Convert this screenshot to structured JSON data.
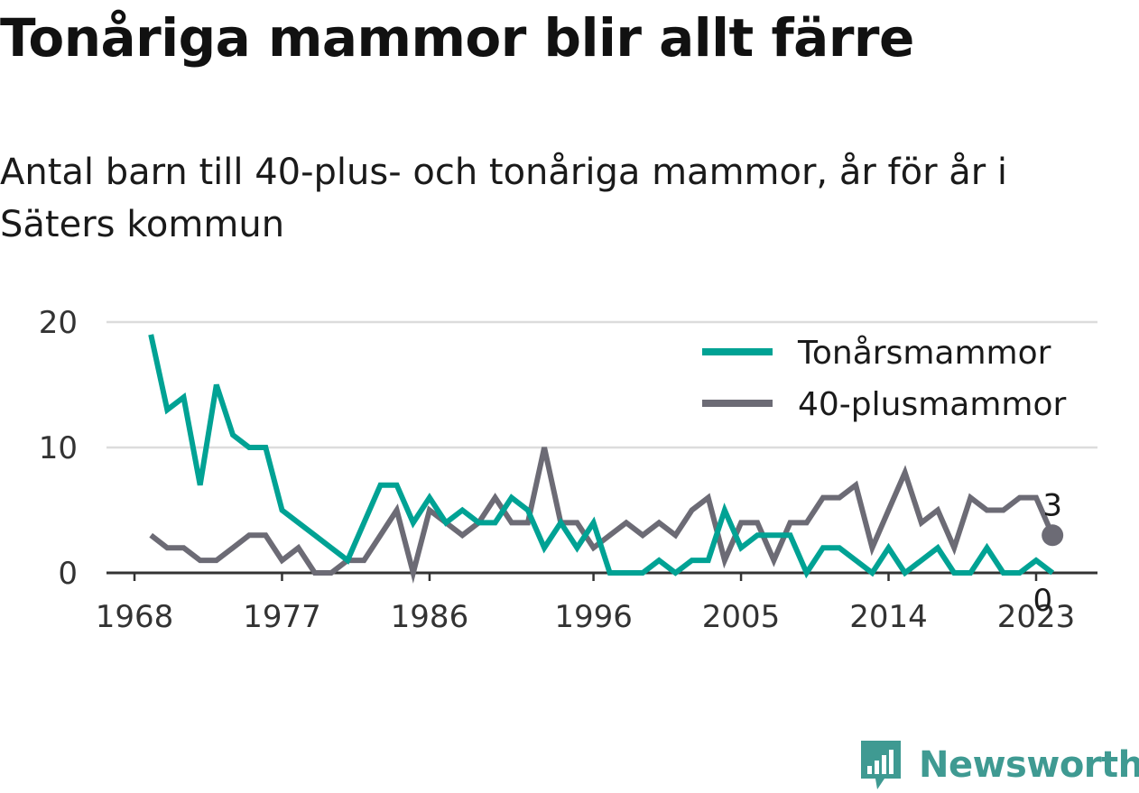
{
  "header": {
    "title": "Tonåriga mammor blir allt färre",
    "subtitle": "Antal barn till 40-plus- och tonåriga mammor, år för år i Säters kommun"
  },
  "chart_data": {
    "type": "line",
    "x": [
      1969,
      1970,
      1971,
      1972,
      1973,
      1974,
      1975,
      1976,
      1977,
      1978,
      1979,
      1980,
      1981,
      1982,
      1983,
      1984,
      1985,
      1986,
      1987,
      1988,
      1989,
      1990,
      1991,
      1992,
      1993,
      1994,
      1995,
      1996,
      1997,
      1998,
      1999,
      2000,
      2001,
      2002,
      2003,
      2004,
      2005,
      2006,
      2007,
      2008,
      2009,
      2010,
      2011,
      2012,
      2013,
      2014,
      2015,
      2016,
      2017,
      2018,
      2019,
      2020,
      2021,
      2022,
      2023,
      2024
    ],
    "series": [
      {
        "name": "Tonårsmammor",
        "color": "#00a294",
        "values": [
          19,
          13,
          14,
          7,
          15,
          11,
          10,
          10,
          5,
          4,
          3,
          2,
          1,
          4,
          7,
          7,
          4,
          6,
          4,
          5,
          4,
          4,
          6,
          5,
          2,
          4,
          2,
          4,
          0,
          0,
          0,
          1,
          0,
          1,
          1,
          5,
          2,
          3,
          3,
          3,
          0,
          2,
          2,
          1,
          0,
          2,
          0,
          1,
          2,
          0,
          0,
          2,
          0,
          0,
          1,
          0
        ],
        "end_label": "0"
      },
      {
        "name": "40-plusmammor",
        "color": "#6c6b75",
        "values": [
          3,
          2,
          2,
          1,
          1,
          2,
          3,
          3,
          1,
          2,
          0,
          0,
          1,
          1,
          3,
          5,
          0,
          5,
          4,
          3,
          4,
          6,
          4,
          4,
          10,
          4,
          4,
          2,
          3,
          4,
          3,
          4,
          3,
          5,
          6,
          1,
          4,
          4,
          1,
          4,
          4,
          6,
          6,
          7,
          2,
          5,
          8,
          4,
          5,
          2,
          6,
          5,
          5,
          6,
          6,
          3
        ],
        "end_label": "3"
      }
    ],
    "x_ticks": [
      "1968",
      "1977",
      "1986",
      "1996",
      "2005",
      "2014",
      "2023"
    ],
    "y_ticks": [
      "0",
      "10",
      "20"
    ],
    "ylim": [
      0,
      20
    ],
    "xlim": [
      1968,
      2025
    ],
    "grid": "horizontal",
    "legend_position": "top-right",
    "xlabel": "",
    "ylabel": ""
  },
  "footer": {
    "brand": "Newsworthy",
    "brand_color": "#3f9a92",
    "brand_icon": "bar-chart-badge-icon"
  }
}
